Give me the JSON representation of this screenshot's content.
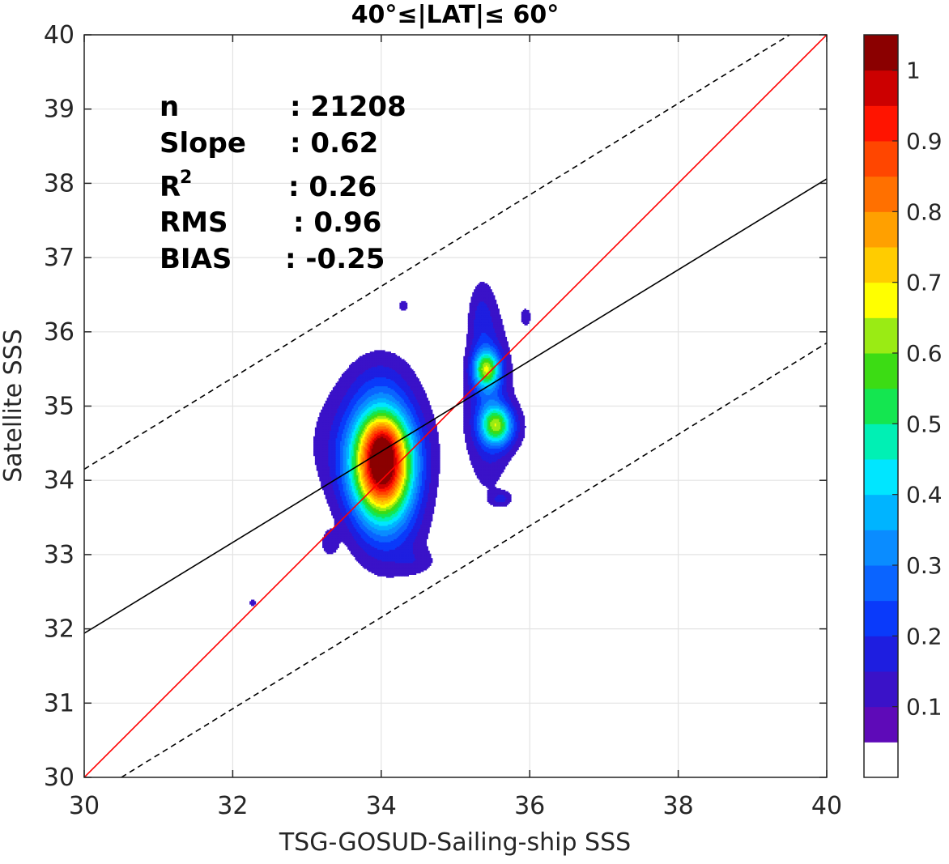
{
  "chart_data": {
    "type": "contour",
    "title": "40°≤|LAT|≤ 60°",
    "xlabel": "TSG-GOSUD-Sailing-ship SSS",
    "ylabel": "Satellite SSS",
    "xlim": [
      30,
      40
    ],
    "ylim": [
      30,
      40
    ],
    "xticks": [
      "30",
      "32",
      "34",
      "36",
      "38",
      "40"
    ],
    "yticks": [
      "30",
      "31",
      "32",
      "33",
      "34",
      "35",
      "36",
      "37",
      "38",
      "39",
      "40"
    ],
    "grid": true,
    "stats": [
      {
        "name": "n",
        "sep": ":",
        "value": "21208"
      },
      {
        "name": "Slope",
        "sep": ":",
        "value": "0.62"
      },
      {
        "name": "R",
        "sup": "2",
        "sep": ":",
        "value": "0.26"
      },
      {
        "name": "RMS",
        "sep": ":",
        "value": "0.96"
      },
      {
        "name": "BIAS",
        "sep": ":",
        "value": "-0.25"
      }
    ],
    "lines": [
      {
        "kind": "one-to-one",
        "color": "#ff0000",
        "x": [
          30,
          40
        ],
        "y": [
          30,
          40
        ]
      },
      {
        "kind": "regression",
        "color": "#000000",
        "x": [
          30,
          40
        ],
        "y": [
          31.94,
          38.06
        ]
      },
      {
        "kind": "upper-bound",
        "color": "#000000",
        "dash": true,
        "x": [
          30,
          39.5
        ],
        "y": [
          34.15,
          40
        ]
      },
      {
        "kind": "lower-bound",
        "color": "#000000",
        "dash": true,
        "x": [
          30.5,
          40
        ],
        "y": [
          30,
          35.85
        ]
      }
    ],
    "density_peaks": [
      {
        "x": 34.02,
        "y": 34.2,
        "sx": 0.28,
        "sy": 0.48,
        "peak": 0.97
      },
      {
        "x": 34.02,
        "y": 34.6,
        "sx": 0.18,
        "sy": 0.22,
        "peak": 0.12
      },
      {
        "x": 33.85,
        "y": 34.5,
        "sx": 0.55,
        "sy": 0.6,
        "peak": 0.12
      },
      {
        "x": 34.1,
        "y": 33.3,
        "sx": 0.35,
        "sy": 0.45,
        "peak": 0.1
      },
      {
        "x": 34.0,
        "y": 35.3,
        "sx": 0.3,
        "sy": 0.35,
        "peak": 0.07
      },
      {
        "x": 35.42,
        "y": 35.5,
        "sx": 0.12,
        "sy": 0.17,
        "peak": 0.46
      },
      {
        "x": 35.55,
        "y": 34.75,
        "sx": 0.14,
        "sy": 0.17,
        "peak": 0.38
      },
      {
        "x": 35.45,
        "y": 35.1,
        "sx": 0.2,
        "sy": 0.75,
        "peak": 0.17
      },
      {
        "x": 35.35,
        "y": 36.2,
        "sx": 0.12,
        "sy": 0.35,
        "peak": 0.08
      },
      {
        "x": 35.65,
        "y": 34.7,
        "sx": 0.2,
        "sy": 0.22,
        "peak": 0.1
      },
      {
        "x": 33.3,
        "y": 33.15,
        "sx": 0.08,
        "sy": 0.12,
        "peak": 0.08
      },
      {
        "x": 35.62,
        "y": 33.75,
        "sx": 0.1,
        "sy": 0.07,
        "peak": 0.1
      },
      {
        "x": 35.95,
        "y": 36.2,
        "sx": 0.06,
        "sy": 0.1,
        "peak": 0.08
      },
      {
        "x": 34.3,
        "y": 36.35,
        "sx": 0.06,
        "sy": 0.06,
        "peak": 0.08
      },
      {
        "x": 32.27,
        "y": 32.35,
        "sx": 0.04,
        "sy": 0.04,
        "peak": 0.08
      },
      {
        "x": 34.5,
        "y": 32.9,
        "sx": 0.18,
        "sy": 0.12,
        "peak": 0.05
      }
    ],
    "colorbar": {
      "ticks": [
        "0.1",
        "0.2",
        "0.3",
        "0.4",
        "0.5",
        "0.6",
        "0.7",
        "0.8",
        "0.9",
        "1"
      ],
      "levels": [
        0.05,
        0.1,
        0.15,
        0.2,
        0.25,
        0.3,
        0.35,
        0.4,
        0.45,
        0.5,
        0.55,
        0.6,
        0.65,
        0.7,
        0.75,
        0.8,
        0.85,
        0.9,
        0.95
      ],
      "colors": [
        "#ffffff",
        "#5e0ab8",
        "#3a12c8",
        "#1e1ee0",
        "#0a3afa",
        "#0a64ff",
        "#0a8cff",
        "#00b4ff",
        "#00e6ff",
        "#00f0b4",
        "#14e650",
        "#3cdc14",
        "#9aeb14",
        "#ffff00",
        "#ffcc00",
        "#ffa000",
        "#ff7000",
        "#ff4600",
        "#ff1400",
        "#cc0000",
        "#8b0000"
      ]
    }
  }
}
